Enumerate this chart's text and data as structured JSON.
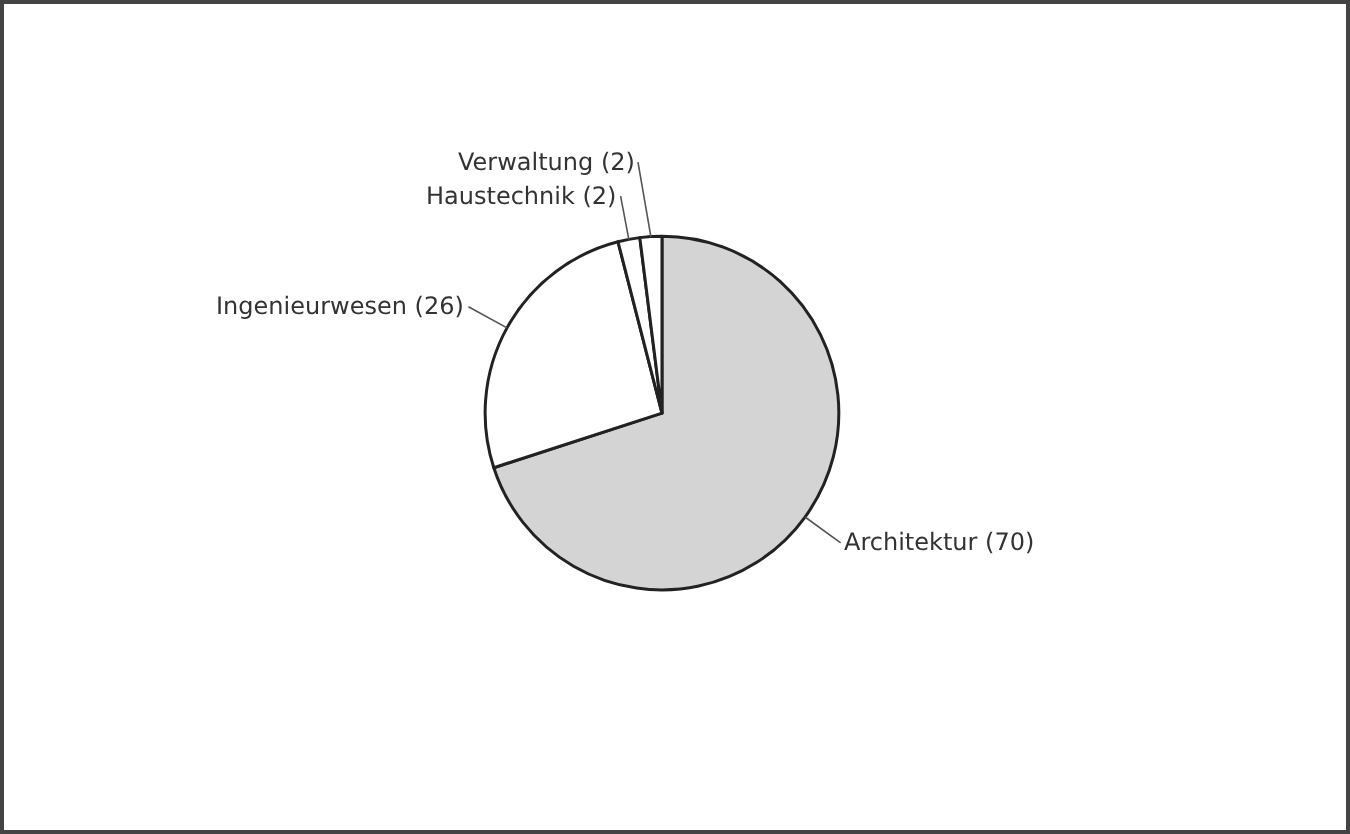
{
  "chart_data": {
    "type": "pie",
    "categories": [
      "Architektur (70)",
      "Ingenieurwesen (26)",
      "Haustechnik (2)",
      "Verwaltung (2)"
    ],
    "values": [
      70,
      26,
      2,
      2
    ],
    "colors": [
      "#d4d4d4",
      "#ffffff",
      "#ffffff",
      "#ffffff"
    ],
    "legend": false
  }
}
